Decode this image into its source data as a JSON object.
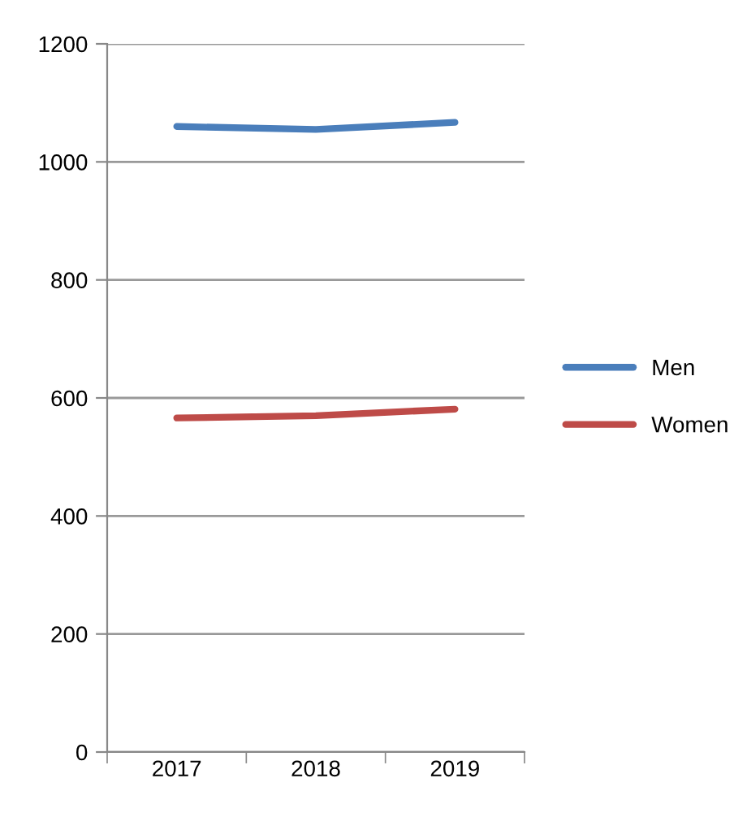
{
  "chart_data": {
    "type": "line",
    "categories": [
      "2017",
      "2018",
      "2019"
    ],
    "series": [
      {
        "name": "Men",
        "color": "#4a7ebb",
        "values": [
          1060,
          1055,
          1067
        ]
      },
      {
        "name": "Women",
        "color": "#be4b48",
        "values": [
          566,
          570,
          581
        ]
      }
    ],
    "ylim": [
      0,
      1200
    ],
    "yticks": [
      0,
      200,
      400,
      600,
      800,
      1000,
      1200
    ],
    "grid": "y",
    "legend": "right",
    "marker": "none",
    "line_style": "solid"
  }
}
